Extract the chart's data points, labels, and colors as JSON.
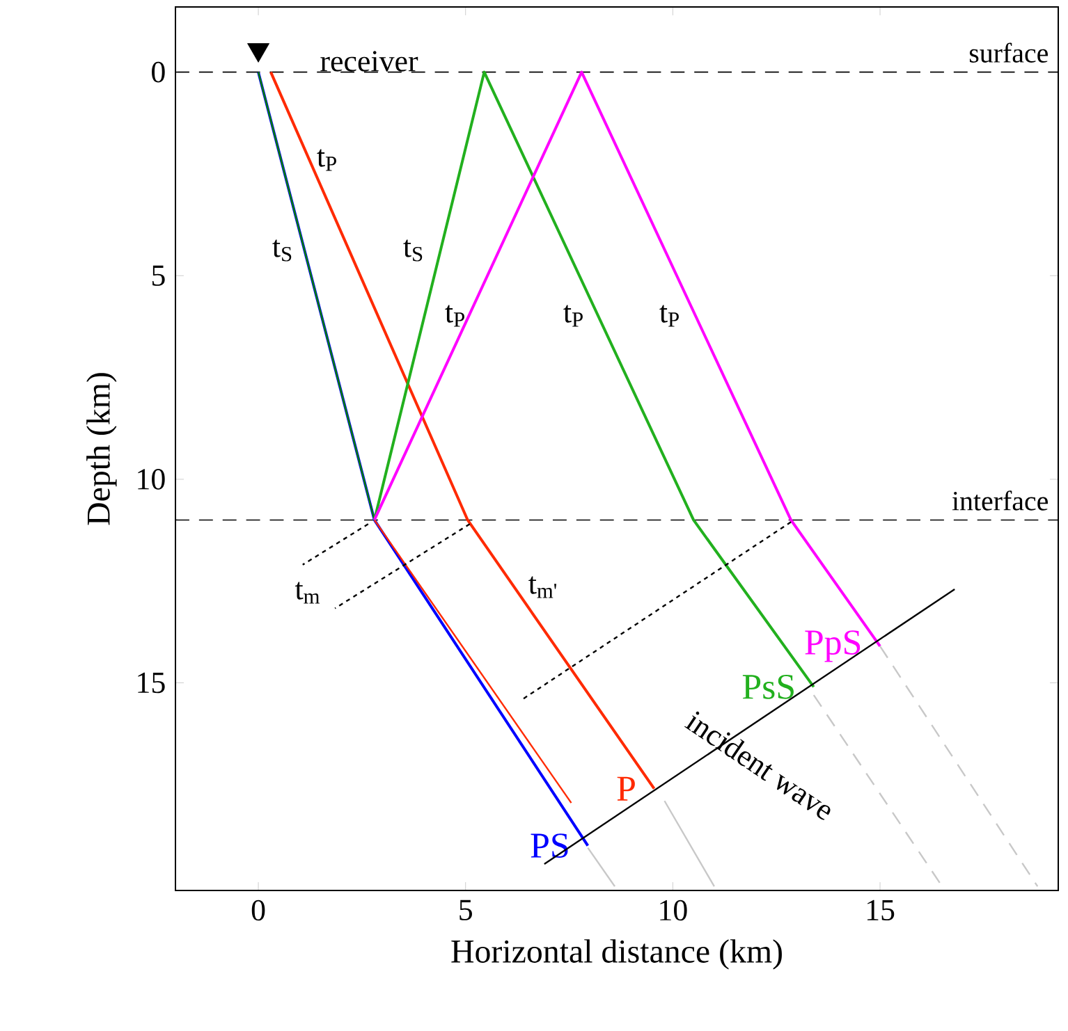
{
  "chart_data": {
    "type": "line",
    "xlabel": "Horizontal distance (km)",
    "ylabel": "Depth (km)",
    "xlim": [
      -2,
      19.3
    ],
    "ylim": [
      20.1,
      -1.6
    ],
    "xticks": [
      0,
      5,
      10,
      15
    ],
    "yticks": [
      0,
      5,
      10,
      15
    ],
    "series": [
      {
        "name": "PS",
        "color": "#0000ff",
        "x": [
          0,
          2.8,
          7.95
        ],
        "values": [
          0,
          11.0,
          19.0
        ]
      },
      {
        "color": "#008000",
        "x": [
          0,
          2.8
        ],
        "values": [
          0,
          11.0
        ]
      },
      {
        "color": "#ff2a00",
        "x": [
          2.8,
          7.55
        ],
        "values": [
          11.0,
          17.95
        ]
      },
      {
        "name": "P",
        "color": "#ff2a00",
        "x": [
          0.3,
          5.05,
          9.55
        ],
        "values": [
          0,
          11.0,
          17.6
        ]
      },
      {
        "name": "PsS",
        "color": "#22b01e",
        "x": [
          2.8,
          5.45,
          10.5,
          13.4
        ],
        "values": [
          11.0,
          0,
          11.0,
          15.1
        ]
      },
      {
        "name": "PpS",
        "color": "#ff00ff",
        "x": [
          2.8,
          7.8,
          12.85,
          15.0
        ],
        "values": [
          11.0,
          0,
          11.0,
          14.1
        ]
      },
      {
        "color": "#000000",
        "x": [
          6.9,
          16.8
        ],
        "values": [
          19.45,
          12.7
        ]
      },
      {
        "color": "#c8c8c8",
        "x": [
          7.95,
          8.6
        ],
        "values": [
          19.05,
          20.0
        ]
      },
      {
        "color": "#c8c8c8",
        "x": [
          9.8,
          11.0
        ],
        "values": [
          17.9,
          20.0
        ]
      },
      {
        "color": "#c8c8c8",
        "line_style": "dashed",
        "x": [
          13.4,
          16.5
        ],
        "values": [
          15.3,
          20.0
        ]
      },
      {
        "color": "#c8c8c8",
        "line_style": "dashed",
        "x": [
          15.0,
          18.8
        ],
        "values": [
          14.1,
          20.0
        ]
      },
      {
        "color": "#000000",
        "line_style": "dotted",
        "x": [
          2.65,
          1.07
        ],
        "values": [
          11.1,
          12.1
        ]
      },
      {
        "color": "#000000",
        "line_style": "dotted",
        "x": [
          5.1,
          1.85
        ],
        "values": [
          11.1,
          13.17
        ]
      },
      {
        "color": "#000000",
        "line_style": "dotted",
        "x": [
          12.85,
          6.38
        ],
        "values": [
          11.05,
          15.4
        ]
      },
      {
        "type": "scatter",
        "marker": "triangle",
        "color": "#000000",
        "x": [
          0
        ],
        "values": [
          -0.55
        ]
      }
    ],
    "ref_lines": [
      {
        "axis": "y",
        "value": 0,
        "label": "surface",
        "line_style": "dashed"
      },
      {
        "axis": "y",
        "value": 11,
        "label": "interface",
        "line_style": "dashed"
      }
    ],
    "annotations": [
      "receiver",
      "t$_{P}$",
      "t$_{S}$",
      "t$_{S}$",
      "t$_{P}$",
      "t$_{P}$",
      "t$_{P}$",
      "t$_{m}$",
      "t$_{m'}$",
      "incident wave"
    ]
  }
}
